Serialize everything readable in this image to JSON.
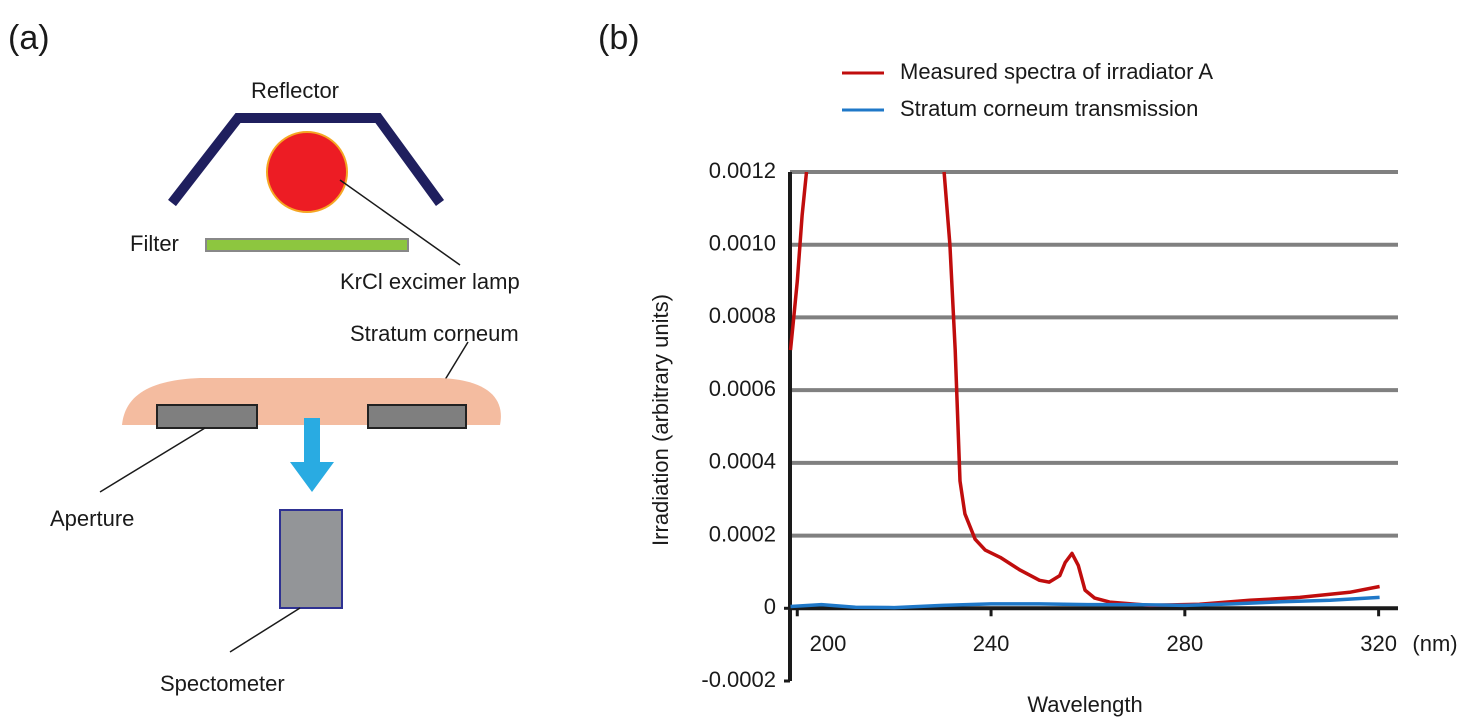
{
  "diagram": {
    "panel_label": "(a)",
    "labels": {
      "reflector": "Reflector",
      "filter": "Filter",
      "lamp": "KrCl excimer lamp",
      "stratum": "Stratum corneum",
      "aperture": "Aperture",
      "spectrometer": "Spectometer"
    }
  },
  "chart_data": {
    "type": "line",
    "panel_label": "(b)",
    "xlabel": "Wavelength",
    "x_unit": "(nm)",
    "ylabel": "Irradiation (arbitrary units)",
    "xlim": [
      198.5,
      324
    ],
    "xticks": [
      200,
      240,
      280,
      320
    ],
    "ylim": [
      -0.0002,
      0.0012
    ],
    "yticks": [
      -0.0002,
      0,
      0.0002,
      0.0004,
      0.0006,
      0.0008,
      {
        "value": 0.001,
        "label": "0.0010"
      },
      0.0012
    ],
    "grid": true,
    "series": [
      {
        "name": "Measured spectra of irradiator A",
        "color": "#c00d0d",
        "x": [
          198.6,
          199.2,
          200,
          201,
          201.9,
          216,
          230.3,
          231.5,
          232.6,
          233.6,
          234.6,
          236.7,
          238.8,
          241.9,
          246,
          250,
          252,
          254.2,
          255.3,
          256.7,
          258,
          259.4,
          261.4,
          264.5,
          272.8,
          283,
          293.4,
          303.7,
          314,
          320.2
        ],
        "values": [
          0.00071,
          0.00079,
          0.0009,
          0.00108,
          0.0012,
          null,
          0.0012,
          0.001,
          0.00071,
          0.00035,
          0.00026,
          0.00019,
          0.00016,
          0.00014,
          0.000105,
          7.7e-05,
          7.2e-05,
          9e-05,
          0.000126,
          0.000151,
          0.000118,
          5e-05,
          2.8e-05,
          1.7e-05,
          8e-06,
          1.1e-05,
          2.2e-05,
          3e-05,
          4.4e-05,
          6e-05
        ]
      },
      {
        "name": "Stratum corneum transmission",
        "color": "#1f78c8",
        "x": [
          198.6,
          205,
          212,
          220,
          230,
          240,
          250,
          260,
          270,
          280,
          290,
          300,
          310,
          320.2
        ],
        "values": [
          5e-06,
          1e-05,
          3e-06,
          2e-06,
          8e-06,
          1.2e-05,
          1.2e-05,
          1e-05,
          1e-05,
          8e-06,
          1.2e-05,
          1.8e-05,
          2.2e-05,
          3e-05
        ]
      }
    ]
  }
}
